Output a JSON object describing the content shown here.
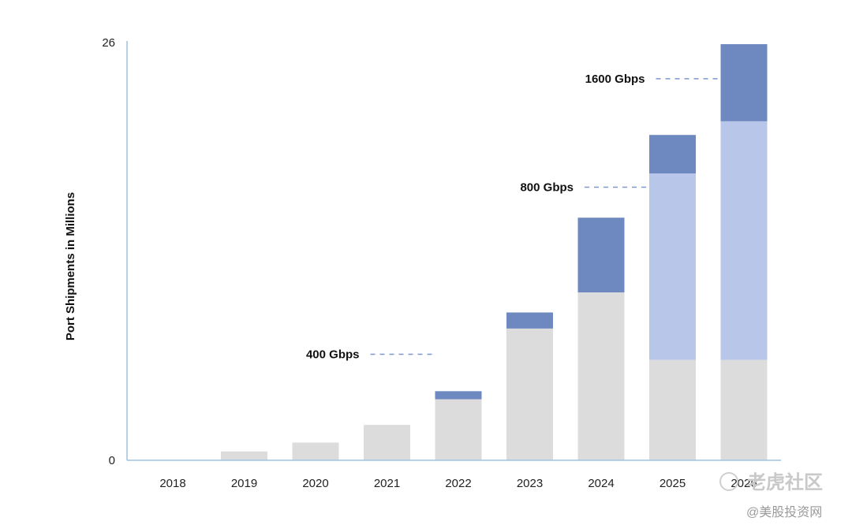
{
  "chart_data": {
    "type": "bar",
    "stacked": true,
    "ylabel": "Port Shipments in Millions",
    "xlabel": "",
    "ylim": [
      0,
      26
    ],
    "y_ticks": [
      "0",
      "26"
    ],
    "grid": false,
    "categories": [
      "2018",
      "2019",
      "2020",
      "2021",
      "2022",
      "2023",
      "2024",
      "2025",
      "2026"
    ],
    "series": [
      {
        "color": "#dcdcdc",
        "values": [
          0,
          0.55,
          1.1,
          2.2,
          3.8,
          8.2,
          10.45,
          6.25,
          6.25
        ]
      },
      {
        "color": "#b8c6ea",
        "values": [
          0,
          0,
          0,
          0,
          0,
          0,
          0,
          11.6,
          14.85
        ]
      },
      {
        "color": "#6e88c0",
        "values": [
          0,
          0,
          0,
          0,
          0.5,
          1.0,
          4.65,
          2.4,
          4.8
        ]
      }
    ],
    "annotations": [
      {
        "text": "400 Gbps",
        "bar": "2022",
        "y": 6.6
      },
      {
        "text": "800 Gbps",
        "bar": "2025",
        "y": 17.0
      },
      {
        "text": "1600 Gbps",
        "bar": "2026",
        "y": 23.75
      }
    ],
    "axis_color": "#9fc3e0"
  },
  "watermark": {
    "line1": "老虎社区",
    "line2": "@美股投资网"
  }
}
